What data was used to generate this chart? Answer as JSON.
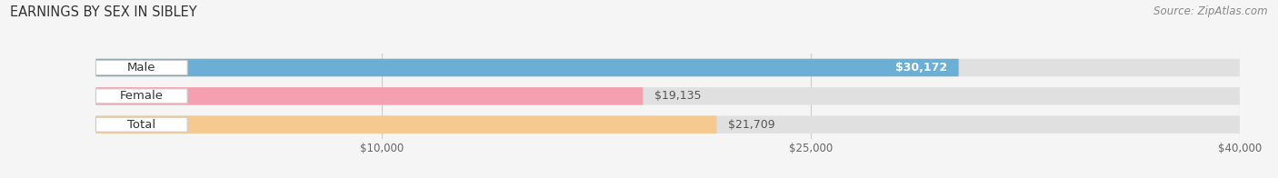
{
  "title": "EARNINGS BY SEX IN SIBLEY",
  "source": "Source: ZipAtlas.com",
  "categories": [
    "Male",
    "Female",
    "Total"
  ],
  "values": [
    30172,
    19135,
    21709
  ],
  "bar_colors": [
    "#6baed6",
    "#f4a0b0",
    "#f5c990"
  ],
  "bar_bg_color": "#e0e0e0",
  "value_labels": [
    "$30,172",
    "$19,135",
    "$21,709"
  ],
  "value_label_colors": [
    "white",
    "#555555",
    "#555555"
  ],
  "xmin": 0,
  "xmax": 40000,
  "xticks": [
    10000,
    25000,
    40000
  ],
  "xtick_labels": [
    "$10,000",
    "$25,000",
    "$40,000"
  ],
  "title_fontsize": 10.5,
  "source_fontsize": 8.5,
  "label_fontsize": 9.5,
  "value_fontsize": 9,
  "background_color": "#f5f5f5"
}
